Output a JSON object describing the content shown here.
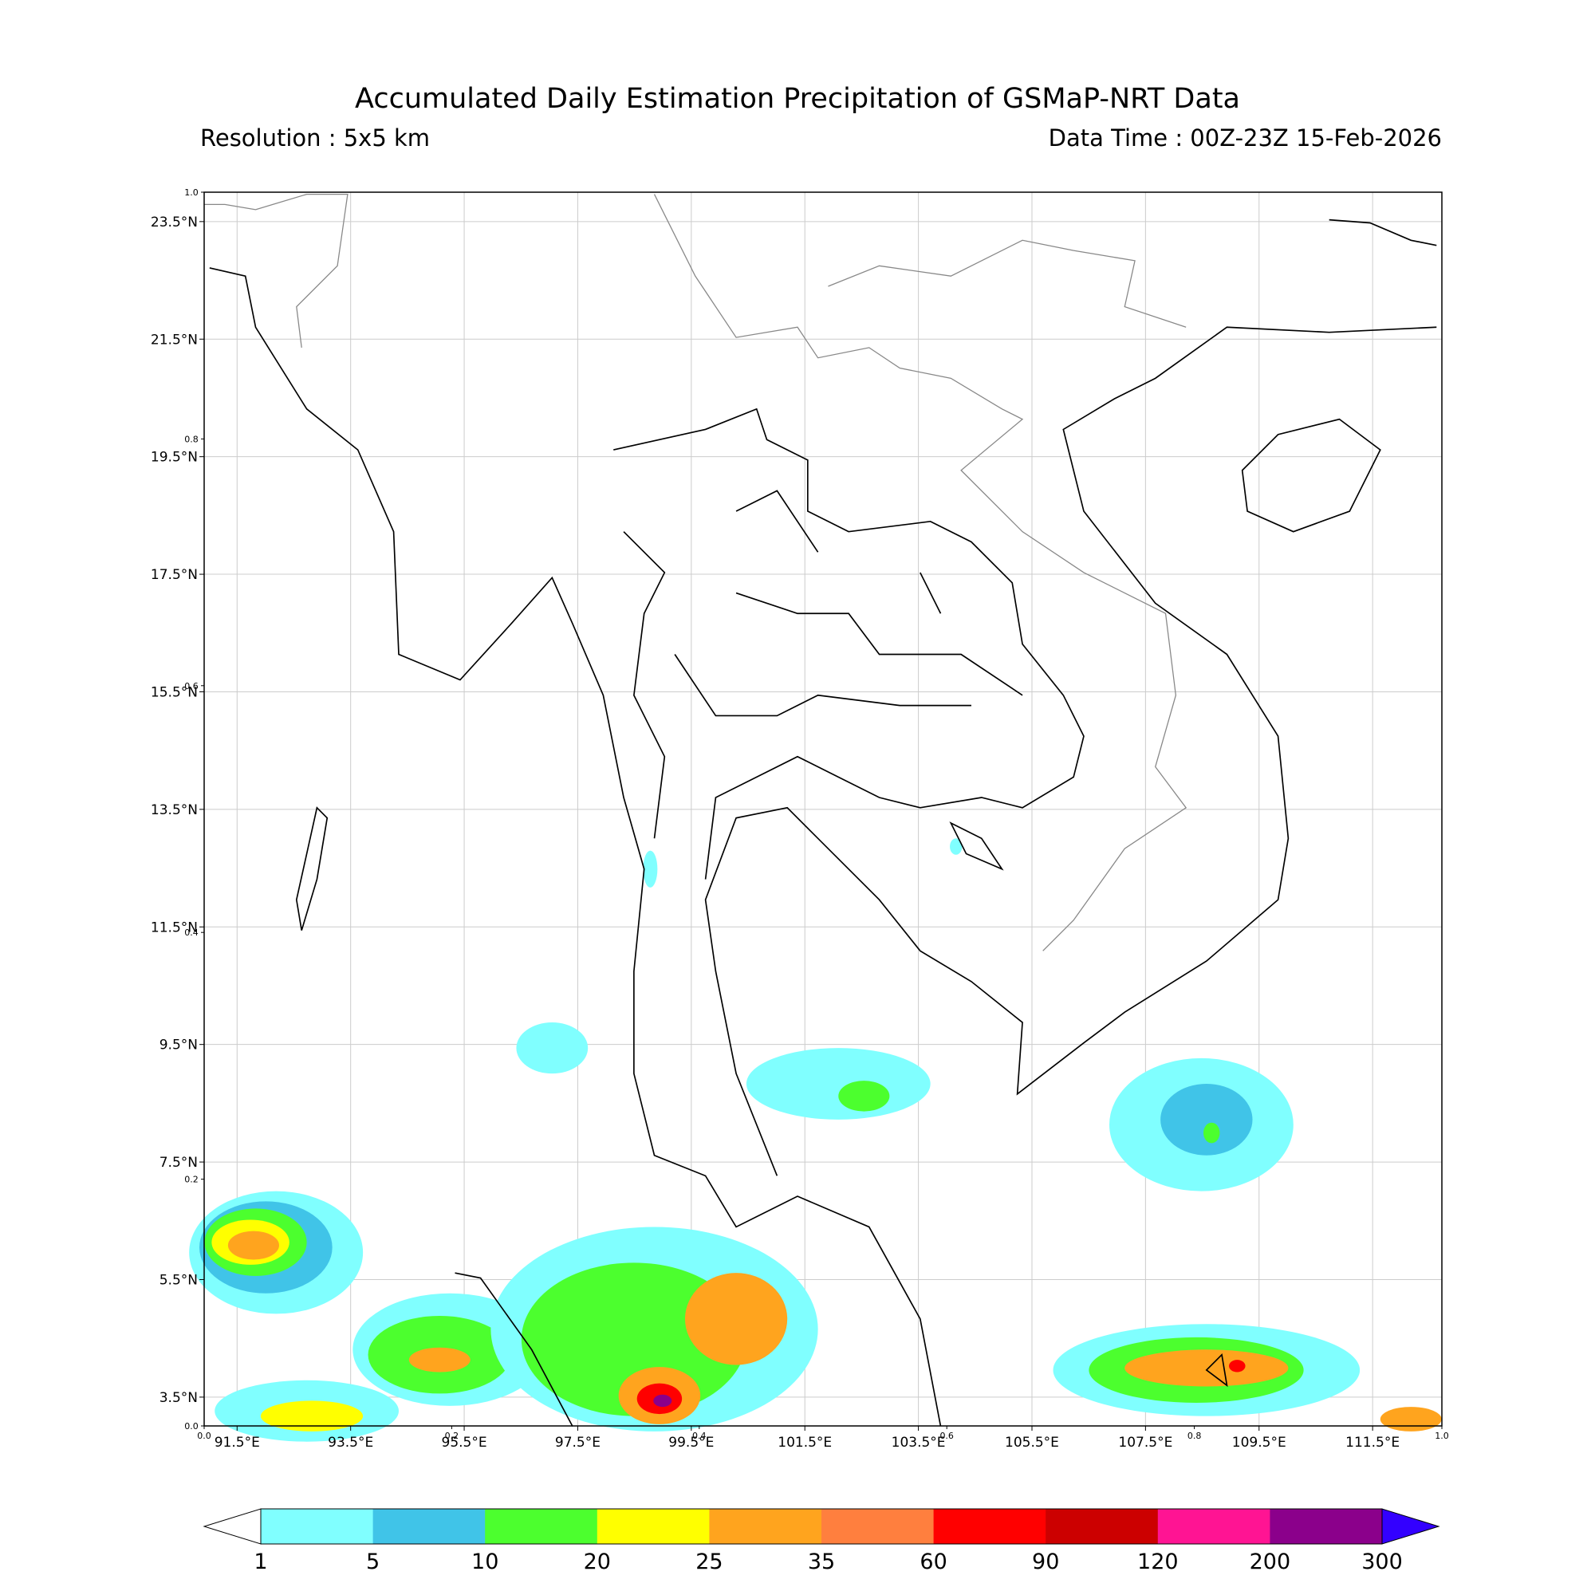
{
  "header": {
    "title": "Accumulated Daily Estimation Precipitation of GSMaP-NRT Data",
    "resolution": "Resolution : 5x5 km",
    "data_time": "Data Time : 00Z-23Z 15-Feb-2026"
  },
  "map": {
    "lon_range": [
      90.92,
      112.72
    ],
    "lat_range": [
      3.01,
      24.0
    ],
    "lon_ticks": [
      {
        "value": 91.5,
        "label": "91.5°E"
      },
      {
        "value": 93.5,
        "label": "93.5°E"
      },
      {
        "value": 95.5,
        "label": "95.5°E"
      },
      {
        "value": 97.5,
        "label": "97.5°E"
      },
      {
        "value": 99.5,
        "label": "99.5°E"
      },
      {
        "value": 101.5,
        "label": "101.5°E"
      },
      {
        "value": 103.5,
        "label": "103.5°E"
      },
      {
        "value": 105.5,
        "label": "105.5°E"
      },
      {
        "value": 107.5,
        "label": "107.5°E"
      },
      {
        "value": 109.5,
        "label": "109.5°E"
      },
      {
        "value": 111.5,
        "label": "111.5°E"
      }
    ],
    "lat_ticks": [
      {
        "value": 3.5,
        "label": "3.5°N"
      },
      {
        "value": 5.5,
        "label": "5.5°N"
      },
      {
        "value": 7.5,
        "label": "7.5°N"
      },
      {
        "value": 9.5,
        "label": "9.5°N"
      },
      {
        "value": 11.5,
        "label": "11.5°N"
      },
      {
        "value": 13.5,
        "label": "13.5°N"
      },
      {
        "value": 15.5,
        "label": "15.5°N"
      },
      {
        "value": 17.5,
        "label": "17.5°N"
      },
      {
        "value": 19.5,
        "label": "19.5°N"
      },
      {
        "value": 21.5,
        "label": "21.5°N"
      },
      {
        "value": 23.5,
        "label": "23.5°N"
      }
    ],
    "grid": true
  },
  "overlay_axis": {
    "xlim": [
      0,
      1
    ],
    "ylim": [
      0,
      1
    ],
    "xticks": [
      {
        "value": 0,
        "label": "0.0"
      },
      {
        "value": 0.2,
        "label": "0.2"
      },
      {
        "value": 0.4,
        "label": "0.4"
      },
      {
        "value": 0.6,
        "label": "0.6"
      },
      {
        "value": 0.8,
        "label": "0.8"
      },
      {
        "value": 1,
        "label": "1.0"
      }
    ],
    "yticks": [
      {
        "value": 0,
        "label": "0.0"
      },
      {
        "value": 0.2,
        "label": "0.2"
      },
      {
        "value": 0.4,
        "label": "0.4"
      },
      {
        "value": 0.6,
        "label": "0.6"
      },
      {
        "value": 0.8,
        "label": "0.8"
      },
      {
        "value": 1,
        "label": "1.0"
      }
    ]
  },
  "colorbar": {
    "levels": [
      1,
      5,
      10,
      20,
      25,
      35,
      60,
      90,
      120,
      200,
      300
    ],
    "colors": [
      "#80ffff",
      "#40c4e8",
      "#4cff2e",
      "#ffff00",
      "#ffa41e",
      "#ff7f3e",
      "#ff0000",
      "#cc0000",
      "#ff1493",
      "#8b008b"
    ],
    "under_color": "#ffffff",
    "over_color": "#3300ff"
  }
}
